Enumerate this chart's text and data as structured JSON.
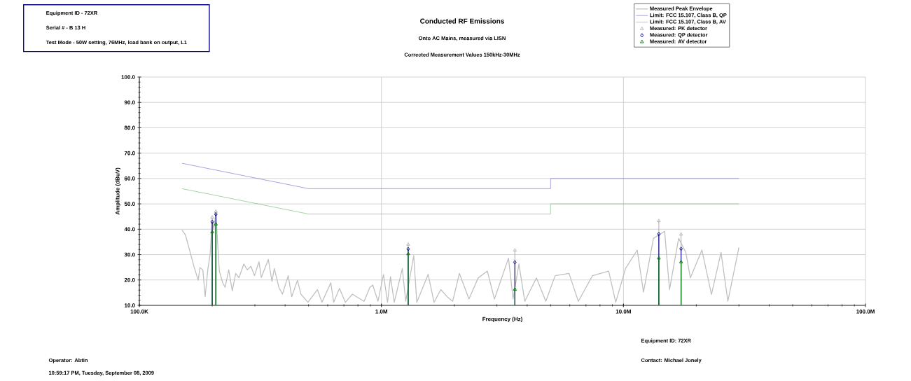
{
  "chart_data": {
    "type": "line",
    "title": "Conducted RF Emissions",
    "subtitle": "Onto AC Mains, measured via LISN",
    "xlabel": "Frequency (Hz)",
    "ylabel": "Amplitude (dBuV)",
    "annotations": [
      "Corrected Measurement Values 150kHz-30MHz",
      "Equipment ID - 72XR",
      "Serial # - B 13 H",
      "Test Mode - 50W setting, 76MHz, load bank on output, L1",
      "Equipment ID: 72XR",
      "Operator: Abtin",
      "Contact: Michael Jonely",
      "10:59:17 PM, Tuesday, September 08, 2009"
    ],
    "log": "x",
    "grid": true,
    "legend": "top right",
    "xlim": [
      100000,
      100000000
    ],
    "xticks": [
      {
        "value": 100000,
        "label": "100.0K"
      },
      {
        "value": 1000000,
        "label": "1.0M"
      },
      {
        "value": 10000000,
        "label": "10.0M"
      },
      {
        "value": 100000000,
        "label": "100.0M"
      }
    ],
    "ylim": [
      10,
      100
    ],
    "yticks": [
      {
        "value": 10,
        "label": "10.0"
      },
      {
        "value": 20,
        "label": "20.0"
      },
      {
        "value": 30,
        "label": "30.0"
      },
      {
        "value": 40,
        "label": "40.0"
      },
      {
        "value": 50,
        "label": "50.0"
      },
      {
        "value": 60,
        "label": "60.0"
      },
      {
        "value": 70,
        "label": "70.0"
      },
      {
        "value": 80,
        "label": "80.0"
      },
      {
        "value": 90,
        "label": "90.0"
      },
      {
        "value": 100,
        "label": "100.0"
      }
    ],
    "series": [
      {
        "name": "Measured Peak Envelope",
        "color": "#c0c0c0",
        "x": [
          150000,
          155000,
          168000,
          175000,
          178000,
          183000,
          187000,
          192000,
          196000,
          200000,
          203000,
          207000,
          214000,
          221000,
          226000,
          234000,
          242000,
          250000,
          258000,
          270000,
          279000,
          289000,
          299000,
          312000,
          319000,
          341000,
          353000,
          361000,
          377000,
          390000,
          412000,
          426000,
          450000,
          465000,
          497000,
          544000,
          568000,
          618000,
          635000,
          671000,
          710000,
          759000,
          848000,
          896000,
          921000,
          968000,
          1020000,
          1060000,
          1090000,
          1130000,
          1220000,
          1260000,
          1360000,
          1400000,
          1560000,
          1650000,
          1760000,
          1870000,
          1970000,
          2100000,
          2300000,
          2510000,
          2740000,
          2930000,
          3350000,
          3500000,
          3700000,
          3910000,
          4370000,
          4780000,
          5220000,
          5960000,
          6510000,
          7450000,
          8690000,
          9290000,
          10200000,
          11400000,
          12100000,
          13300000,
          14800000,
          15500000,
          16900000,
          18100000,
          18900000,
          21100000,
          23100000,
          25300000,
          27000000,
          30000000
        ],
        "values": [
          39.7,
          37.8,
          25.4,
          19.9,
          24.9,
          23.9,
          13.4,
          24.5,
          30.0,
          44,
          40,
          46.5,
          23.5,
          18.9,
          17.1,
          24.0,
          15.7,
          22.6,
          20.9,
          26.3,
          24.0,
          25.4,
          21.7,
          27.2,
          21.0,
          28.1,
          19.4,
          24.5,
          17.1,
          14.4,
          21.7,
          13.4,
          19.9,
          14.4,
          11.2,
          16.2,
          11.2,
          18.9,
          11.2,
          16.7,
          11.2,
          14.4,
          11.6,
          17.1,
          18.0,
          11.6,
          22.2,
          11.2,
          21.3,
          11.2,
          24.5,
          11.6,
          29.6,
          11.2,
          22.2,
          11.2,
          16.2,
          13.4,
          11.6,
          22.6,
          12.5,
          20.8,
          23.5,
          12.5,
          28.6,
          12.5,
          26.3,
          11.6,
          20.8,
          11.6,
          21.7,
          22.6,
          11.6,
          21.7,
          23.5,
          11.2,
          24.5,
          31.8,
          15.2,
          36.4,
          39.2,
          16.2,
          36.4,
          30.9,
          20.8,
          31.8,
          14.3,
          30.9,
          11.6,
          32.8
        ]
      },
      {
        "name": "Limit: FCC 15.107, Class B, QP",
        "color": "#6a6ac4",
        "x": [
          150000,
          500000,
          5000000,
          5000000,
          30000000
        ],
        "values": [
          66,
          56,
          56,
          60,
          60
        ]
      },
      {
        "name": "Limit: FCC 15.107, Class B, AV",
        "color": "#66b866",
        "x": [
          150000,
          500000,
          5000000,
          5000000,
          30000000
        ],
        "values": [
          56,
          46,
          46,
          50,
          50
        ]
      },
      {
        "name": "Measured: PK detector",
        "type": "lollipop",
        "marker": "triangle",
        "color": "#b4b4b4",
        "x": [
          200000,
          207000,
          1290000,
          3560000,
          14000000,
          17300000
        ],
        "values": [
          44.7,
          47.0,
          34.0,
          31.7,
          43.3,
          38.0
        ]
      },
      {
        "name": "Measured: QP detector",
        "type": "lollipop",
        "marker": "diamond",
        "color": "#00008b",
        "x": [
          200000,
          207000,
          1290000,
          3560000,
          14000000,
          17300000
        ],
        "values": [
          42.9,
          45.9,
          32.2,
          27.0,
          38.1,
          32.3
        ]
      },
      {
        "name": "Measured: AV detector",
        "type": "lollipop",
        "marker": "triangle",
        "color": "#007a00",
        "x": [
          200000,
          207000,
          1290000,
          3560000,
          14000000,
          17300000
        ],
        "values": [
          38.9,
          42.0,
          30.3,
          16.3,
          28.6,
          27.1
        ]
      }
    ]
  }
}
